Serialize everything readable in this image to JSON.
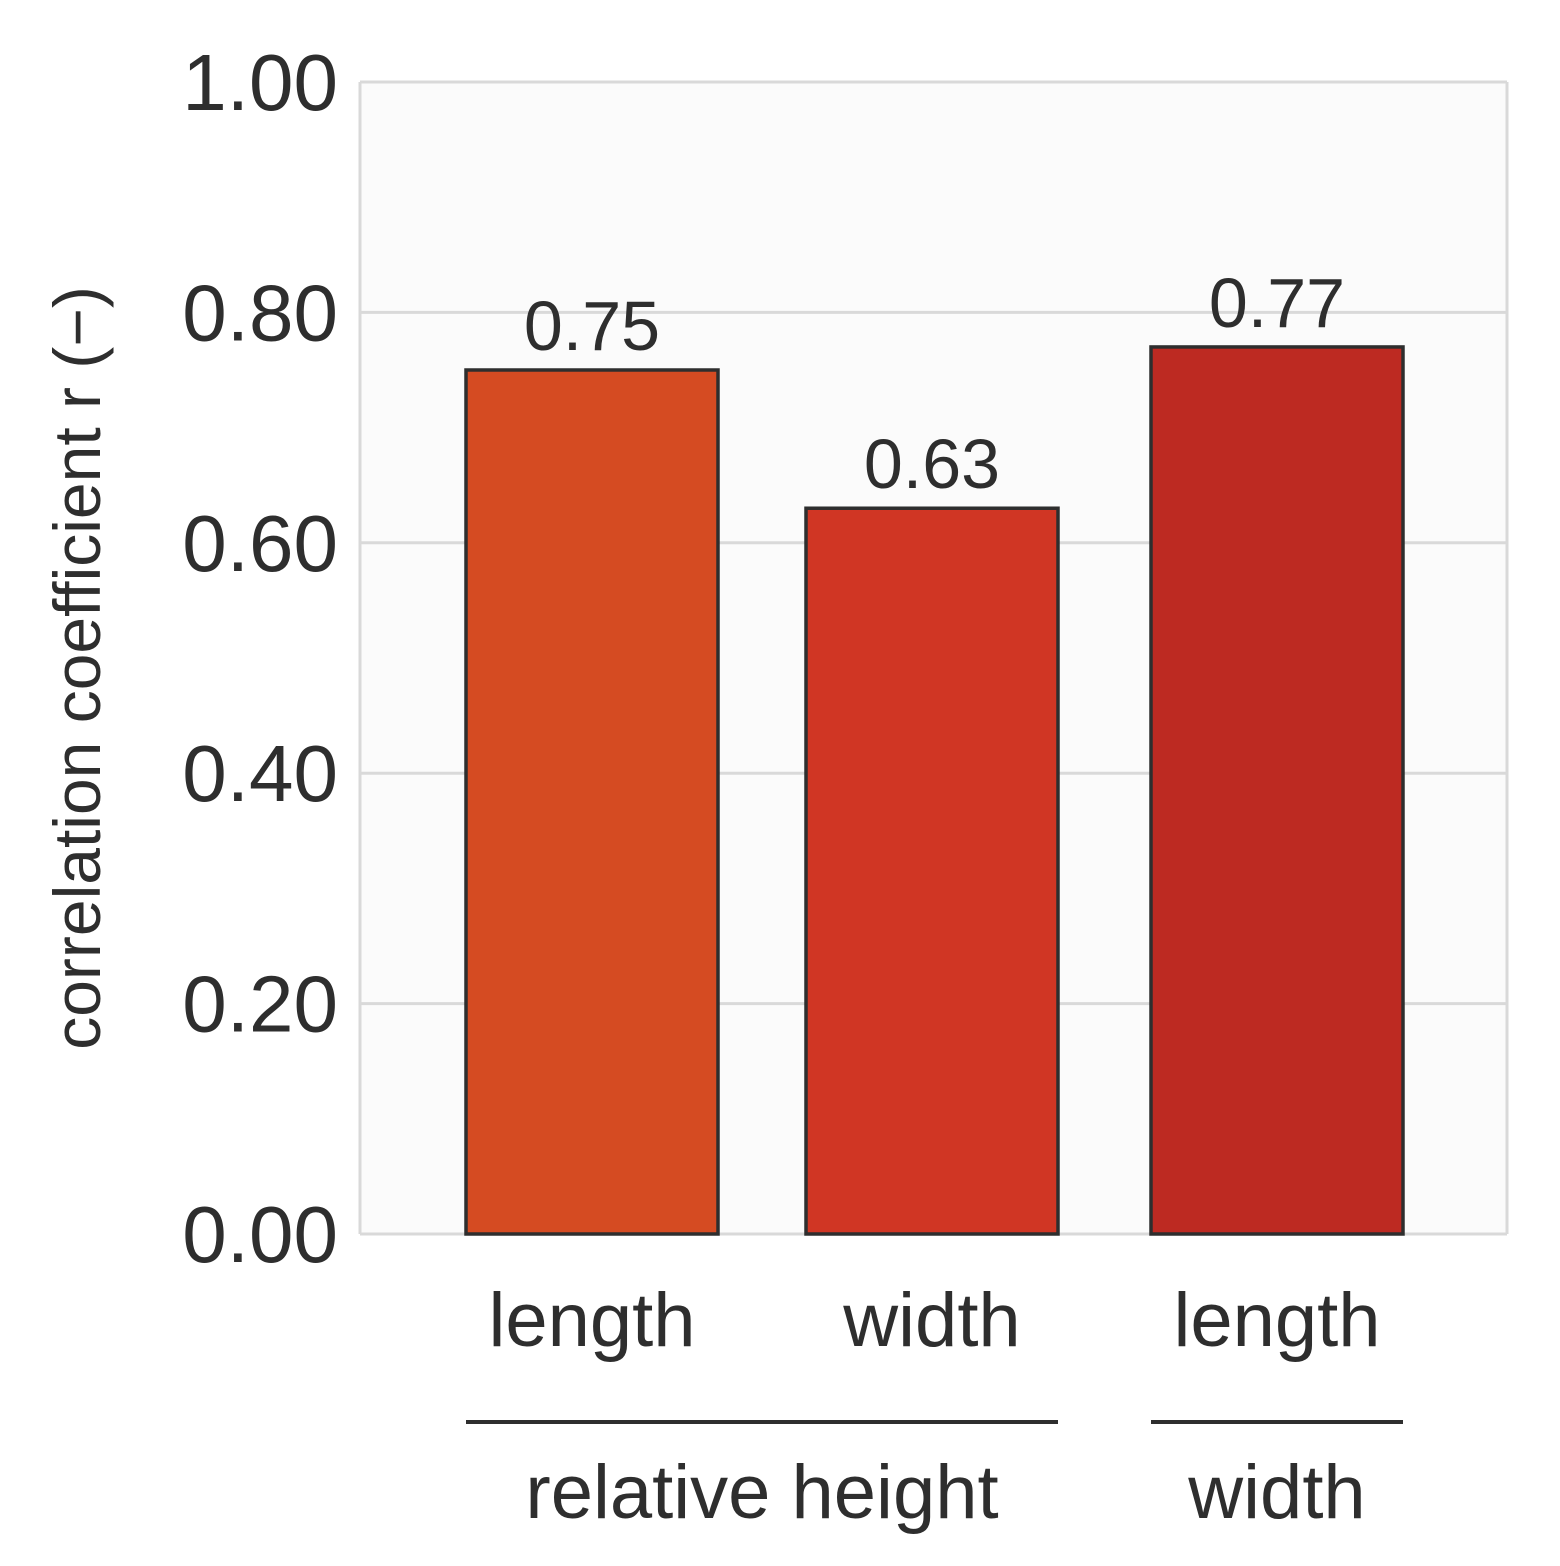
{
  "chart_data": {
    "type": "bar",
    "categories": [
      "length",
      "width",
      "length"
    ],
    "groups": [
      {
        "label": "relative height",
        "categories": [
          0,
          1
        ]
      },
      {
        "label": "width",
        "categories": [
          2
        ]
      }
    ],
    "values": [
      0.75,
      0.63,
      0.77
    ],
    "data_labels": [
      "0.75",
      "0.63",
      "0.77"
    ],
    "bar_colors": [
      "#d54b22",
      "#d03624",
      "#bd2a22"
    ],
    "ylabel": "correlation coefficient r (−)",
    "xlabel": "",
    "title": "",
    "ylim": [
      0,
      1
    ],
    "yticks": [
      0,
      0.2,
      0.4,
      0.6,
      0.8,
      1.0
    ],
    "ytick_labels": [
      "0.00",
      "0.20",
      "0.40",
      "0.60",
      "0.80",
      "1.00"
    ],
    "grid": true,
    "legend": "none"
  },
  "colors": {
    "plot_background": "#fbfbfb",
    "gridline": "#d9d9d9",
    "bar_outline": "#2e2e2e",
    "text": "#2e2e2e"
  }
}
